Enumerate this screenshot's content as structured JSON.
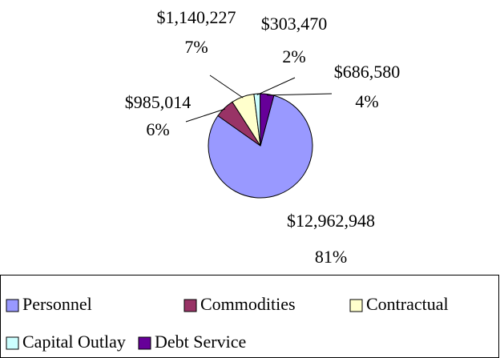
{
  "chart_data": {
    "type": "pie",
    "categories": [
      "Personnel",
      "Commodities",
      "Contractual",
      "Capital Outlay",
      "Debt Service"
    ],
    "values": [
      12962948,
      985014,
      1140227,
      303470,
      686580
    ],
    "value_labels": [
      "$12,962,948",
      "$985,014",
      "$1,140,227",
      "$303,470",
      "$686,580"
    ],
    "percent_labels": [
      "81%",
      "6%",
      "7%",
      "2%",
      "4%"
    ],
    "colors": [
      "#9999ff",
      "#993366",
      "#ffffcc",
      "#ccffff",
      "#660099"
    ],
    "legend": "bottom"
  }
}
